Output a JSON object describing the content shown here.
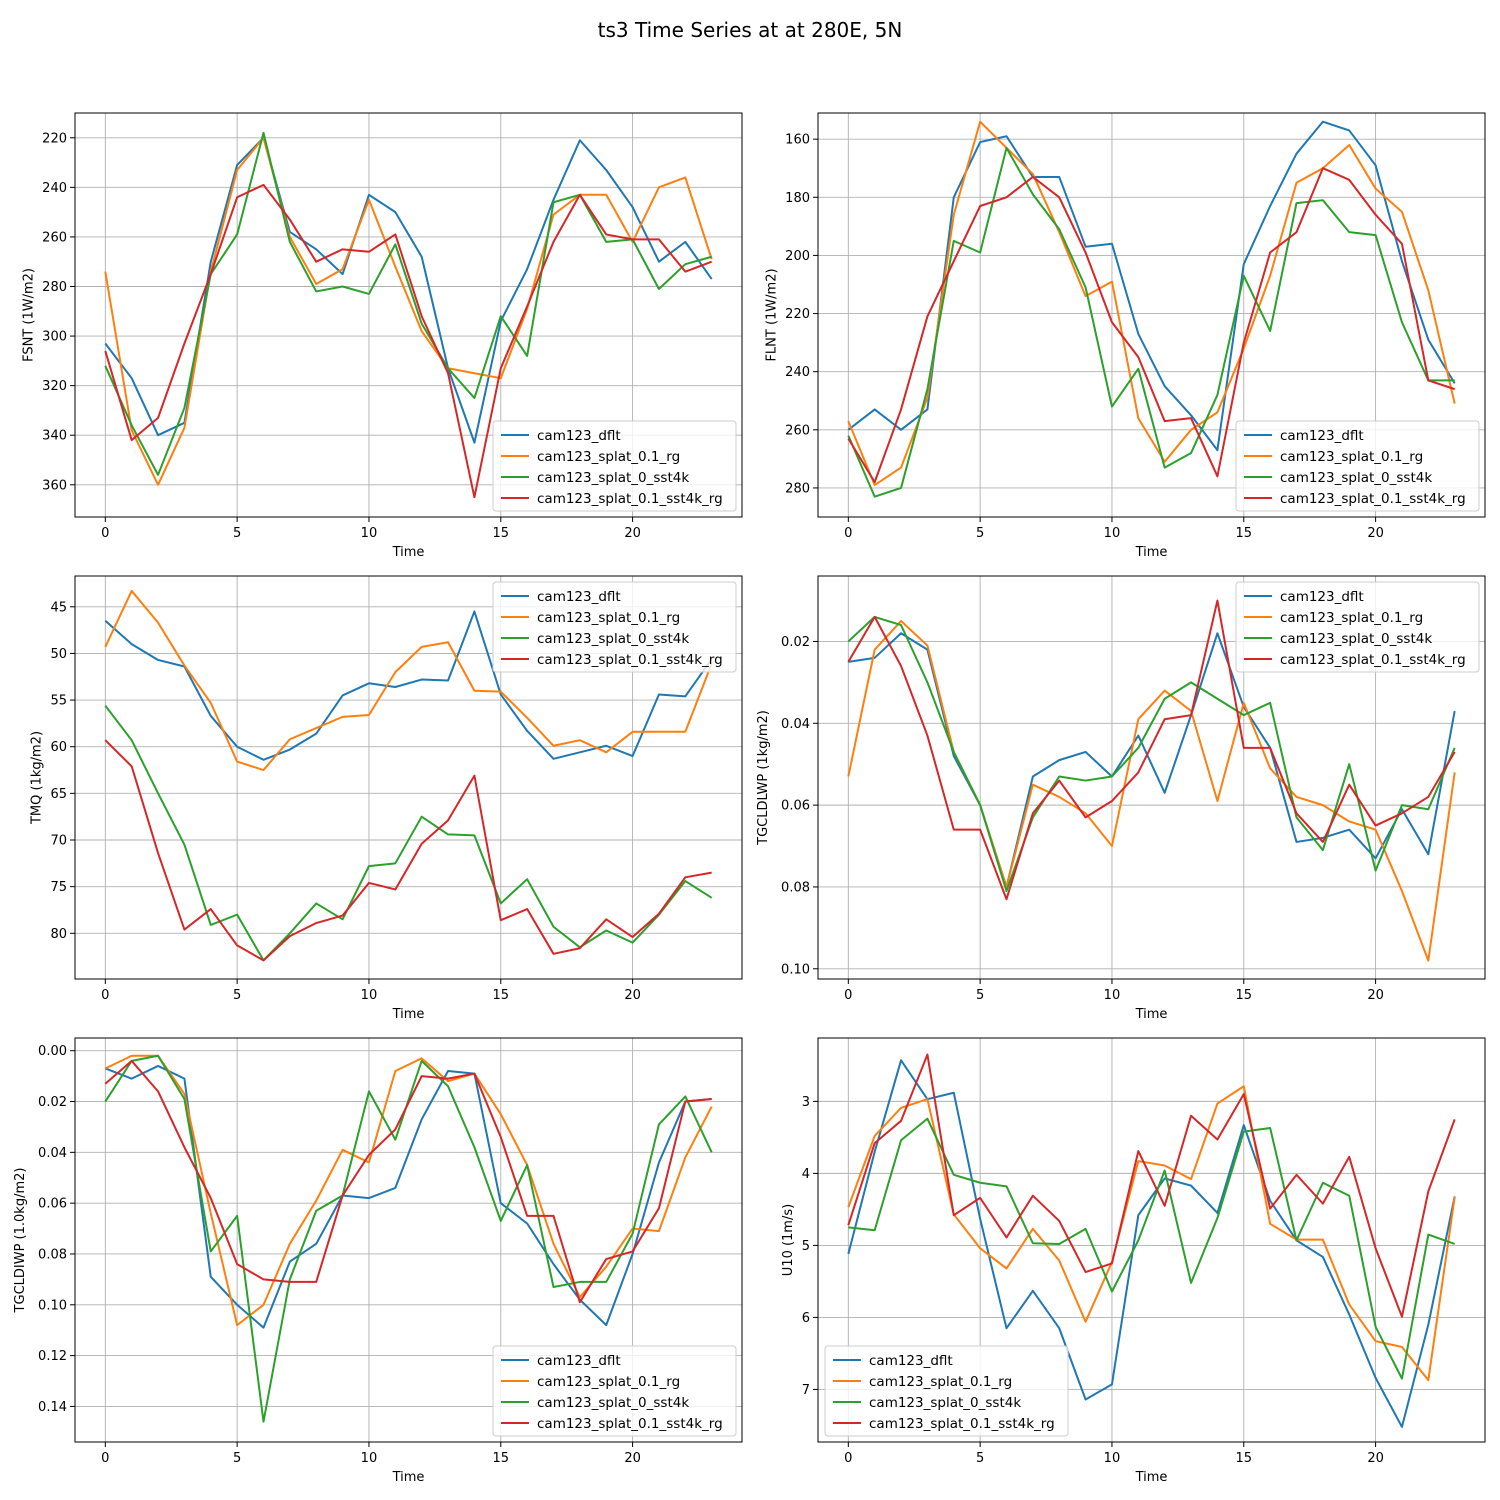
{
  "figure_title": "ts3 Time Series at at 280E, 5N",
  "colors": {
    "cam123_dflt": "#1f77b4",
    "cam123_splat_0.1_rg": "#ff7f0e",
    "cam123_splat_0_sst4k": "#2ca02c",
    "cam123_splat_0.1_sst4k_rg": "#d62728"
  },
  "chart_data": [
    {
      "type": "line",
      "xlabel": "Time",
      "ylabel": "FSNT (1W/m2)",
      "y_inverted": true,
      "xlim": [
        -1.15,
        24.15
      ],
      "ylim": [
        373,
        210
      ],
      "xticks": [
        0,
        5,
        10,
        15,
        20
      ],
      "yticks": [
        220,
        240,
        260,
        280,
        300,
        320,
        340,
        360
      ],
      "legend": "lower-right",
      "grid": true,
      "x": [
        0,
        1,
        2,
        3,
        4,
        5,
        6,
        7,
        8,
        9,
        10,
        11,
        12,
        13,
        14,
        15,
        16,
        17,
        18,
        19,
        20,
        21,
        22,
        23
      ],
      "series": [
        {
          "name": "cam123_dflt",
          "values": [
            303,
            317,
            340,
            335,
            270,
            231,
            220,
            258,
            265,
            275,
            243,
            250,
            268,
            313,
            343,
            294,
            273,
            245,
            221,
            233,
            248,
            270,
            262,
            277
          ]
        },
        {
          "name": "cam123_splat_0.1_rg",
          "values": [
            274,
            338,
            360,
            337,
            274,
            233,
            220,
            260,
            279,
            273,
            245,
            272,
            298,
            313,
            315,
            317,
            289,
            251,
            243,
            243,
            262,
            240,
            236,
            269
          ]
        },
        {
          "name": "cam123_splat_0_sst4k",
          "values": [
            312,
            336,
            356,
            329,
            275,
            259,
            218,
            262,
            282,
            280,
            283,
            263,
            295,
            313,
            325,
            292,
            308,
            246,
            243,
            262,
            261,
            281,
            271,
            268
          ]
        },
        {
          "name": "cam123_splat_0.1_sst4k_rg",
          "values": [
            306,
            342,
            333,
            303,
            275,
            244,
            239,
            253,
            270,
            265,
            266,
            259,
            292,
            315,
            365,
            313,
            288,
            262,
            243,
            259,
            261,
            261,
            274,
            270
          ]
        }
      ]
    },
    {
      "type": "line",
      "xlabel": "Time",
      "ylabel": "FLNT (1W/m2)",
      "y_inverted": true,
      "xlim": [
        -1.15,
        24.15
      ],
      "ylim": [
        290,
        151
      ],
      "xticks": [
        0,
        5,
        10,
        15,
        20
      ],
      "yticks": [
        160,
        180,
        200,
        220,
        240,
        260,
        280
      ],
      "legend": "lower-right",
      "grid": true,
      "x": [
        0,
        1,
        2,
        3,
        4,
        5,
        6,
        7,
        8,
        9,
        10,
        11,
        12,
        13,
        14,
        15,
        16,
        17,
        18,
        19,
        20,
        21,
        22,
        23
      ],
      "series": [
        {
          "name": "cam123_dflt",
          "values": [
            260,
            253,
            260,
            253,
            180,
            161,
            159,
            173,
            173,
            197,
            196,
            227,
            245,
            255,
            267,
            203,
            183,
            165,
            154,
            157,
            169,
            202,
            229,
            244
          ]
        },
        {
          "name": "cam123_splat_0.1_rg",
          "values": [
            257,
            279,
            273,
            249,
            186,
            154,
            163,
            172,
            192,
            214,
            209,
            256,
            271,
            260,
            254,
            232,
            207,
            175,
            170,
            162,
            177,
            185,
            212,
            251
          ]
        },
        {
          "name": "cam123_splat_0_sst4k",
          "values": [
            262,
            283,
            280,
            246,
            195,
            199,
            163,
            179,
            191,
            211,
            252,
            239,
            273,
            268,
            248,
            207,
            226,
            182,
            181,
            192,
            193,
            223,
            243,
            243
          ]
        },
        {
          "name": "cam123_splat_0.1_sst4k_rg",
          "values": [
            263,
            278,
            253,
            221,
            202,
            183,
            180,
            173,
            180,
            199,
            223,
            235,
            257,
            256,
            276,
            230,
            199,
            192,
            170,
            174,
            186,
            196,
            243,
            246
          ]
        }
      ]
    },
    {
      "type": "line",
      "xlabel": "Time",
      "ylabel": "TMQ (1kg/m2)",
      "y_inverted": true,
      "xlim": [
        -1.15,
        24.15
      ],
      "ylim": [
        84.9,
        41.7
      ],
      "xticks": [
        0,
        5,
        10,
        15,
        20
      ],
      "yticks": [
        45,
        50,
        55,
        60,
        65,
        70,
        75,
        80
      ],
      "legend": "top-right",
      "grid": true,
      "x": [
        0,
        1,
        2,
        3,
        4,
        5,
        6,
        7,
        8,
        9,
        10,
        11,
        12,
        13,
        14,
        15,
        16,
        17,
        18,
        19,
        20,
        21,
        22,
        23
      ],
      "series": [
        {
          "name": "cam123_dflt",
          "values": [
            46.5,
            49.0,
            50.7,
            51.4,
            56.7,
            60.0,
            61.4,
            60.3,
            58.6,
            54.5,
            53.2,
            53.6,
            52.8,
            52.9,
            45.5,
            54.4,
            58.3,
            61.3,
            60.6,
            59.9,
            61.0,
            54.4,
            54.6,
            50.6
          ]
        },
        {
          "name": "cam123_splat_0.1_rg",
          "values": [
            49.3,
            43.3,
            46.7,
            51.3,
            55.3,
            61.6,
            62.5,
            59.2,
            58.0,
            56.8,
            56.6,
            52.0,
            49.3,
            48.8,
            54.0,
            54.1,
            56.9,
            59.9,
            59.3,
            60.6,
            58.4,
            58.4,
            58.4,
            51.1
          ]
        },
        {
          "name": "cam123_splat_0_sst4k",
          "values": [
            55.6,
            59.3,
            65.0,
            70.5,
            79.1,
            78.0,
            82.9,
            80.0,
            76.8,
            78.5,
            72.8,
            72.5,
            67.5,
            69.4,
            69.5,
            76.8,
            74.2,
            79.3,
            81.5,
            79.7,
            81.0,
            78.0,
            74.4,
            76.2
          ]
        },
        {
          "name": "cam123_splat_0.1_sst4k_rg",
          "values": [
            59.3,
            62.1,
            71.4,
            79.6,
            77.4,
            81.3,
            82.9,
            80.3,
            78.9,
            78.1,
            74.6,
            75.3,
            70.4,
            67.9,
            63.1,
            78.6,
            77.4,
            82.2,
            81.6,
            78.5,
            80.4,
            77.9,
            74.0,
            73.5
          ]
        }
      ]
    },
    {
      "type": "line",
      "xlabel": "Time",
      "ylabel": "TGCLDLWP (1kg/m2)",
      "y_inverted": true,
      "xlim": [
        -1.15,
        24.15
      ],
      "ylim": [
        0.1025,
        0.004
      ],
      "xticks": [
        0,
        5,
        10,
        15,
        20
      ],
      "yticks": [
        0.02,
        0.04,
        0.06,
        0.08,
        0.1
      ],
      "legend": "top-right",
      "grid": true,
      "x": [
        0,
        1,
        2,
        3,
        4,
        5,
        6,
        7,
        8,
        9,
        10,
        11,
        12,
        13,
        14,
        15,
        16,
        17,
        18,
        19,
        20,
        21,
        22,
        23
      ],
      "series": [
        {
          "name": "cam123_dflt",
          "values": [
            0.025,
            0.024,
            0.018,
            0.022,
            0.048,
            0.06,
            0.08,
            0.053,
            0.049,
            0.047,
            0.053,
            0.043,
            0.057,
            0.038,
            0.018,
            0.036,
            0.046,
            0.069,
            0.068,
            0.066,
            0.073,
            0.061,
            0.072,
            0.037
          ]
        },
        {
          "name": "cam123_splat_0.1_rg",
          "values": [
            0.053,
            0.022,
            0.015,
            0.021,
            0.047,
            0.06,
            0.08,
            0.055,
            0.058,
            0.062,
            0.07,
            0.039,
            0.032,
            0.037,
            0.059,
            0.035,
            0.051,
            0.058,
            0.06,
            0.064,
            0.066,
            0.081,
            0.098,
            0.052
          ]
        },
        {
          "name": "cam123_splat_0_sst4k",
          "values": [
            0.02,
            0.014,
            0.016,
            0.03,
            0.047,
            0.06,
            0.081,
            0.063,
            0.053,
            0.054,
            0.053,
            0.046,
            0.034,
            0.03,
            0.034,
            0.038,
            0.035,
            0.063,
            0.071,
            0.05,
            0.076,
            0.06,
            0.061,
            0.046
          ]
        },
        {
          "name": "cam123_splat_0.1_sst4k_rg",
          "values": [
            0.025,
            0.014,
            0.026,
            0.043,
            0.066,
            0.066,
            0.083,
            0.062,
            0.054,
            0.063,
            0.059,
            0.052,
            0.039,
            0.038,
            0.01,
            0.046,
            0.046,
            0.062,
            0.069,
            0.055,
            0.065,
            0.062,
            0.058,
            0.047
          ]
        }
      ]
    },
    {
      "type": "line",
      "xlabel": "Time",
      "ylabel": "TGCLDIWP (1.0kg/m2)",
      "y_inverted": true,
      "xlim": [
        -1.15,
        24.15
      ],
      "ylim": [
        0.154,
        -0.005
      ],
      "xticks": [
        0,
        5,
        10,
        15,
        20
      ],
      "yticks": [
        0.0,
        0.02,
        0.04,
        0.06,
        0.08,
        0.1,
        0.12,
        0.14
      ],
      "legend": "lower-right",
      "grid": true,
      "x": [
        0,
        1,
        2,
        3,
        4,
        5,
        6,
        7,
        8,
        9,
        10,
        11,
        12,
        13,
        14,
        15,
        16,
        17,
        18,
        19,
        20,
        21,
        22,
        23
      ],
      "series": [
        {
          "name": "cam123_dflt",
          "values": [
            0.007,
            0.011,
            0.006,
            0.011,
            0.089,
            0.1,
            0.109,
            0.083,
            0.076,
            0.057,
            0.058,
            0.054,
            0.027,
            0.008,
            0.009,
            0.06,
            0.068,
            0.084,
            0.098,
            0.108,
            0.08,
            0.044,
            0.02,
            0.019
          ]
        },
        {
          "name": "cam123_splat_0.1_rg",
          "values": [
            0.007,
            0.002,
            0.002,
            0.017,
            0.064,
            0.108,
            0.1,
            0.076,
            0.059,
            0.039,
            0.044,
            0.008,
            0.003,
            0.012,
            0.009,
            0.025,
            0.045,
            0.076,
            0.097,
            0.085,
            0.07,
            0.071,
            0.042,
            0.022
          ]
        },
        {
          "name": "cam123_splat_0_sst4k",
          "values": [
            0.02,
            0.004,
            0.002,
            0.019,
            0.079,
            0.065,
            0.146,
            0.09,
            0.063,
            0.057,
            0.016,
            0.035,
            0.004,
            0.014,
            0.038,
            0.067,
            0.045,
            0.093,
            0.091,
            0.091,
            0.072,
            0.029,
            0.018,
            0.04
          ]
        },
        {
          "name": "cam123_splat_0.1_sst4k_rg",
          "values": [
            0.013,
            0.004,
            0.016,
            0.038,
            0.058,
            0.084,
            0.09,
            0.091,
            0.091,
            0.057,
            0.041,
            0.031,
            0.01,
            0.011,
            0.009,
            0.034,
            0.065,
            0.065,
            0.099,
            0.082,
            0.079,
            0.062,
            0.02,
            0.019
          ]
        }
      ]
    },
    {
      "type": "line",
      "xlabel": "Time",
      "ylabel": "U10 (1m/s)",
      "y_inverted": true,
      "xlim": [
        -1.15,
        24.15
      ],
      "ylim": [
        7.73,
        2.12
      ],
      "xticks": [
        0,
        5,
        10,
        15,
        20
      ],
      "yticks": [
        3,
        4,
        5,
        6,
        7
      ],
      "legend": "lower-left",
      "grid": true,
      "x": [
        0,
        1,
        2,
        3,
        4,
        5,
        6,
        7,
        8,
        9,
        10,
        11,
        12,
        13,
        14,
        15,
        16,
        17,
        18,
        19,
        20,
        21,
        22,
        23
      ],
      "series": [
        {
          "name": "cam123_dflt",
          "values": [
            5.12,
            3.7,
            2.43,
            2.97,
            2.88,
            4.63,
            6.15,
            5.63,
            6.15,
            7.14,
            6.93,
            4.58,
            4.07,
            4.17,
            4.55,
            3.33,
            4.38,
            4.93,
            5.16,
            5.96,
            6.84,
            7.52,
            6.1,
            4.32
          ]
        },
        {
          "name": "cam123_splat_0.1_rg",
          "values": [
            4.47,
            3.48,
            3.09,
            2.97,
            4.57,
            5.04,
            5.32,
            4.77,
            5.21,
            6.06,
            5.23,
            3.83,
            3.89,
            4.08,
            3.03,
            2.79,
            4.7,
            4.92,
            4.92,
            5.82,
            6.33,
            6.41,
            6.87,
            4.33
          ]
        },
        {
          "name": "cam123_splat_0_sst4k",
          "values": [
            4.75,
            4.79,
            3.54,
            3.24,
            4.02,
            4.13,
            4.18,
            4.97,
            4.98,
            4.77,
            5.64,
            4.93,
            3.96,
            5.52,
            4.62,
            3.42,
            3.37,
            4.93,
            4.13,
            4.31,
            6.13,
            6.85,
            4.85,
            4.98
          ]
        },
        {
          "name": "cam123_splat_0.1_sst4k_rg",
          "values": [
            4.72,
            3.58,
            3.27,
            2.35,
            4.58,
            4.34,
            4.89,
            4.31,
            4.66,
            5.37,
            5.25,
            3.69,
            4.45,
            3.2,
            3.53,
            2.9,
            4.49,
            4.02,
            4.42,
            3.77,
            5.04,
            5.99,
            4.25,
            3.25
          ]
        }
      ]
    }
  ]
}
